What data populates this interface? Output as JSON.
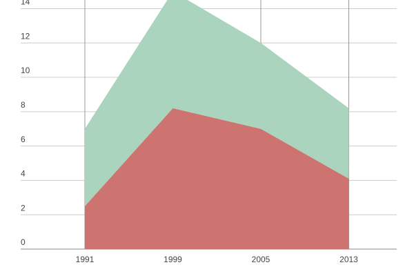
{
  "chart_data": {
    "type": "area",
    "stacked": true,
    "categories": [
      "1991",
      "1999",
      "2005",
      "2013"
    ],
    "series": [
      {
        "color": "#cd7470",
        "values": [
          2.5,
          8.2,
          7.0,
          4.1
        ]
      },
      {
        "color": "#aad4bd",
        "values": [
          4.5,
          6.8,
          5.0,
          4.1
        ]
      }
    ],
    "ylim": [
      0,
      14.5
    ],
    "yticks": [
      0,
      2,
      4,
      6,
      8,
      10,
      12,
      14
    ],
    "grid": true
  }
}
